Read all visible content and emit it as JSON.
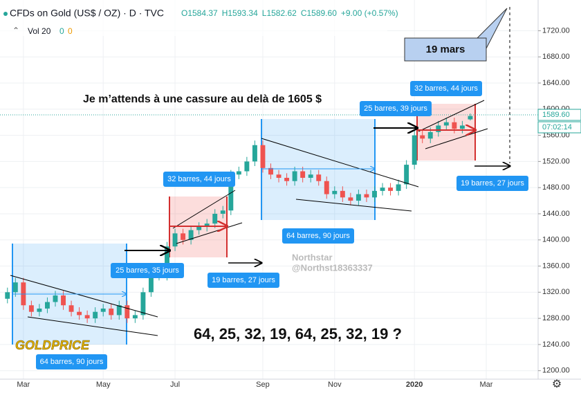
{
  "chart_data": {
    "type": "candlestick",
    "header": {
      "title": "CFDs on Gold (US$ / OZ) · D · TVC",
      "ohlc": [
        "O1584.37",
        "H1593.34",
        "L1582.62",
        "C1589.60",
        "+9.00 (+0.57%)"
      ],
      "volume": [
        "Vol 20",
        "0",
        "0"
      ]
    },
    "price_tags": [
      "1589.60",
      "07:02:14"
    ],
    "annotations": [
      "64 barres, 90 jours",
      "25 barres, 35 jours",
      "19 barres, 27 jours",
      "32 barres, 44 jours",
      "64 barres, 90 jours",
      "25 barres, 39 jours",
      "32 barres, 44 jours",
      "19 barres, 27 jours",
      "Je m’attends à une cassure au delà de 1605 $",
      "64, 25, 32, 19, 64, 25, 32, 19 ?",
      "19 mars"
    ],
    "watermark": [
      "Northstar",
      "@Northst18363337"
    ],
    "logo": "GOLDPRICE",
    "categories": [
      null,
      null,
      "Mar",
      null,
      null,
      null,
      null,
      null,
      null,
      null,
      null,
      null,
      "May",
      null,
      null,
      null,
      null,
      null,
      null,
      null,
      null,
      "Jul",
      null,
      null,
      null,
      null,
      null,
      null,
      null,
      null,
      null,
      null,
      "Sep",
      null,
      null,
      null,
      null,
      null,
      null,
      null,
      null,
      "Nov",
      null,
      null,
      null,
      null,
      null,
      null,
      null,
      null,
      null,
      "2020",
      null,
      null,
      null,
      null,
      null,
      null,
      null,
      null,
      "Mar",
      null,
      null,
      null,
      null,
      null,
      null
    ],
    "open": [
      1310,
      1320,
      1335,
      1300,
      1290,
      1295,
      1305,
      1315,
      1300,
      1290,
      1285,
      1280,
      1290,
      1295,
      1285,
      1300,
      1280,
      1285,
      1320,
      1345,
      1345,
      1390,
      1410,
      1400,
      1415,
      1420,
      1425,
      1440,
      1445,
      1500,
      1505,
      1520,
      1545,
      1510,
      1500,
      1495,
      1490,
      1505,
      1495,
      1500,
      1490,
      1470,
      1475,
      1465,
      1460,
      1470,
      1465,
      1475,
      1480,
      1475,
      1485,
      1515,
      1560,
      1555,
      1565,
      1575,
      1580,
      1570,
      1584.37,
      null,
      null,
      null,
      null,
      null,
      null,
      null,
      null
    ],
    "high": [
      1327,
      1342,
      1342,
      1307,
      1302,
      1312,
      1322,
      1322,
      1307,
      1297,
      1292,
      1297,
      1302,
      1302,
      1307,
      1307,
      1292,
      1327,
      1352,
      1352,
      1397,
      1417,
      1417,
      1422,
      1427,
      1432,
      1447,
      1452,
      1507,
      1512,
      1527,
      1552,
      1552,
      1517,
      1507,
      1502,
      1512,
      1512,
      1507,
      1507,
      1497,
      1482,
      1482,
      1472,
      1477,
      1477,
      1482,
      1487,
      1487,
      1492,
      1522,
      1567,
      1567,
      1572,
      1582,
      1587,
      1587,
      1582,
      1593.34,
      null,
      null,
      null,
      null,
      null,
      null,
      null,
      null
    ],
    "low": [
      1303,
      1313,
      1293,
      1283,
      1283,
      1288,
      1298,
      1293,
      1283,
      1278,
      1273,
      1273,
      1283,
      1278,
      1278,
      1273,
      1273,
      1278,
      1313,
      1338,
      1338,
      1383,
      1393,
      1393,
      1408,
      1413,
      1418,
      1433,
      1438,
      1493,
      1498,
      1513,
      1503,
      1493,
      1488,
      1483,
      1483,
      1488,
      1488,
      1483,
      1463,
      1463,
      1458,
      1453,
      1453,
      1458,
      1458,
      1468,
      1468,
      1468,
      1478,
      1508,
      1548,
      1548,
      1558,
      1568,
      1563,
      1563,
      1582.62,
      null,
      null,
      null,
      null,
      null,
      null,
      null,
      null
    ],
    "close": [
      1320,
      1335,
      1300,
      1290,
      1295,
      1305,
      1315,
      1300,
      1290,
      1285,
      1280,
      1290,
      1295,
      1285,
      1300,
      1280,
      1285,
      1320,
      1345,
      1345,
      1390,
      1410,
      1400,
      1415,
      1420,
      1425,
      1440,
      1445,
      1500,
      1505,
      1520,
      1545,
      1510,
      1500,
      1495,
      1490,
      1505,
      1495,
      1500,
      1490,
      1470,
      1475,
      1465,
      1460,
      1470,
      1465,
      1475,
      1480,
      1475,
      1485,
      1515,
      1560,
      1555,
      1565,
      1575,
      1580,
      1570,
      1575,
      1589.6,
      null,
      null,
      null,
      null,
      null,
      null,
      null,
      null
    ],
    "up_color": "#26a69a",
    "down_color": "#ef5350",
    "ylim": [
      1187,
      1767
    ],
    "yticks": [
      {
        "value": 1200,
        "label": "1200.00"
      },
      {
        "value": 1240,
        "label": "1240.00"
      },
      {
        "value": 1280,
        "label": "1280.00"
      },
      {
        "value": 1320,
        "label": "1320.00"
      },
      {
        "value": 1360,
        "label": "1360.00"
      },
      {
        "value": 1400,
        "label": "1400.00"
      },
      {
        "value": 1440,
        "label": "1440.00"
      },
      {
        "value": 1480,
        "label": "1480.00"
      },
      {
        "value": 1520,
        "label": "1520.00"
      },
      {
        "value": 1560,
        "label": "1560.00"
      },
      {
        "value": 1600,
        "label": "1600.00"
      },
      {
        "value": 1640,
        "label": "1640.00"
      },
      {
        "value": 1680,
        "label": "1680.00"
      },
      {
        "value": 1720,
        "label": "1720.00"
      }
    ],
    "grid": true
  }
}
